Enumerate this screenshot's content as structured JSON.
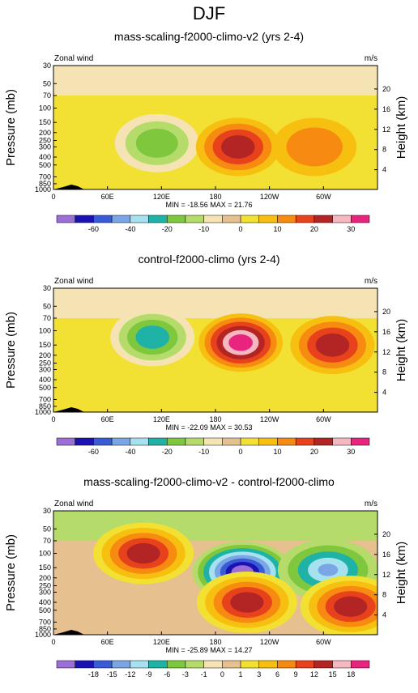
{
  "figure_title": "DJF",
  "chart_data": [
    {
      "type": "heatmap",
      "title": "mass-scaling-f2000-climo-v2 (yrs 2-4)",
      "variable_label": "Zonal wind",
      "units": "m/s",
      "ylabel": "Pressure (mb)",
      "ylabel_right": "Height (km)",
      "pressure_ticks": [
        "30",
        "50",
        "70",
        "100",
        "150",
        "200",
        "250",
        "300",
        "400",
        "500",
        "700",
        "850",
        "1000"
      ],
      "height_ticks": [
        "20",
        "16",
        "12",
        "8",
        "4"
      ],
      "x_ticks": [
        "0",
        "60E",
        "120E",
        "180",
        "120W",
        "60W"
      ],
      "min_max_text": "MIN = -18.56  MAX = 21.76",
      "contour_levels": [
        -70,
        -60,
        -50,
        -40,
        -30,
        -20,
        -15,
        -10,
        -5,
        0,
        5,
        10,
        15,
        20,
        25,
        30,
        35
      ],
      "colorbar_labels": [
        "-60",
        "-40",
        "-20",
        "-10",
        "0",
        "10",
        "20",
        "30"
      ],
      "features": [
        {
          "lon": 115,
          "p": 270,
          "value": -18
        },
        {
          "lon": 205,
          "p": 300,
          "value": 21.76
        },
        {
          "lon": 290,
          "p": 300,
          "value": 15
        }
      ]
    },
    {
      "type": "heatmap",
      "title": "control-f2000-climo (yrs 2-4)",
      "variable_label": "Zonal wind",
      "units": "m/s",
      "ylabel": "Pressure (mb)",
      "ylabel_right": "Height (km)",
      "pressure_ticks": [
        "30",
        "50",
        "70",
        "100",
        "150",
        "200",
        "250",
        "300",
        "400",
        "500",
        "700",
        "850",
        "1000"
      ],
      "height_ticks": [
        "20",
        "16",
        "12",
        "8",
        "4"
      ],
      "x_ticks": [
        "0",
        "60E",
        "120E",
        "180",
        "120W",
        "60W"
      ],
      "min_max_text": "MIN = -22.09  MAX = 30.53",
      "contour_levels": [
        -70,
        -60,
        -50,
        -40,
        -30,
        -20,
        -15,
        -10,
        -5,
        0,
        5,
        10,
        15,
        20,
        25,
        30,
        35
      ],
      "colorbar_labels": [
        "-60",
        "-40",
        "-20",
        "-10",
        "0",
        "10",
        "20",
        "30"
      ],
      "features": [
        {
          "lon": 110,
          "p": 120,
          "value": -22
        },
        {
          "lon": 208,
          "p": 140,
          "value": 30.53
        },
        {
          "lon": 310,
          "p": 150,
          "value": 21
        }
      ]
    },
    {
      "type": "heatmap",
      "title": "mass-scaling-f2000-climo-v2 - control-f2000-climo",
      "variable_label": "Zonal wind",
      "units": "m/s",
      "ylabel": "Pressure (mb)",
      "ylabel_right": "Height (km)",
      "pressure_ticks": [
        "30",
        "50",
        "70",
        "100",
        "150",
        "200",
        "250",
        "300",
        "400",
        "500",
        "700",
        "850",
        "1000"
      ],
      "height_ticks": [
        "20",
        "16",
        "12",
        "8",
        "4"
      ],
      "x_ticks": [
        "0",
        "60E",
        "120E",
        "180",
        "120W",
        "60W"
      ],
      "min_max_text": "MIN = -25.89  MAX = 14.27",
      "contour_levels": [
        -21,
        -18,
        -15,
        -12,
        -9,
        -6,
        -3,
        -1,
        0,
        1,
        3,
        6,
        9,
        12,
        15,
        18,
        21
      ],
      "colorbar_labels": [
        "-18",
        "-15",
        "-12",
        "-9",
        "-6",
        "-3",
        "-1",
        "0",
        "1",
        "3",
        "6",
        "9",
        "12",
        "15",
        "18"
      ],
      "features": [
        {
          "lon": 100,
          "p": 100,
          "value": 14
        },
        {
          "lon": 210,
          "p": 170,
          "value": -25.89
        },
        {
          "lon": 305,
          "p": 160,
          "value": -12
        },
        {
          "lon": 215,
          "p": 400,
          "value": 14.27
        },
        {
          "lon": 330,
          "p": 450,
          "value": 13
        }
      ]
    }
  ],
  "colors": {
    "fill_scale": [
      "#9b6fd6",
      "#1a12b3",
      "#3a5bd6",
      "#7aa6e6",
      "#a6e1f0",
      "#1eb3a6",
      "#7fc83e",
      "#b5dc6a",
      "#f5e3b3",
      "#e6c08f",
      "#f2e132",
      "#f7c010",
      "#f78a10",
      "#e8421c",
      "#b32424",
      "#f5b8c0",
      "#e8247f"
    ],
    "ink": "#000000"
  }
}
